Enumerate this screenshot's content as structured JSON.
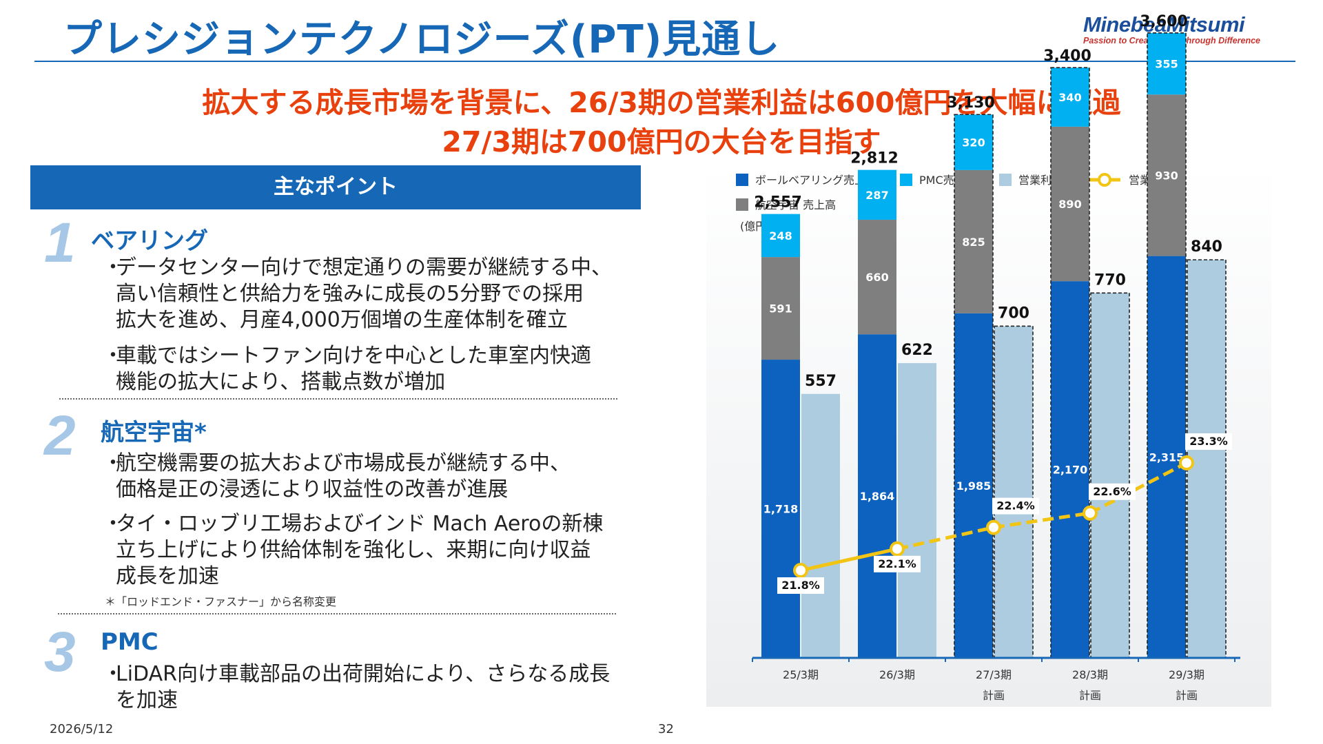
{
  "header": {
    "title": "プレシジョンテクノロジーズ(PT)見通し",
    "logo_name": "MinebeaMitsumi",
    "logo_tagline": "Passion to Create Value through Difference",
    "headline_line1": "拡大する成長市場を背景に、26/3期の営業利益は600億円を大幅に超過",
    "headline_line2": "27/3期は700億円の大台を目指す"
  },
  "points": {
    "header": "主なポイント",
    "sections": [
      {
        "number": "1",
        "title": "ベアリング",
        "bullets": [
          [
            "データセンター向けで想定通りの需要が継続する中、",
            "高い信頼性と供給力を強みに成長の5分野での採用",
            "拡大を進め、月産4,000万個増の生産体制を確立"
          ],
          [
            "車載ではシートファン向けを中心とした車室内快適",
            "機能の拡大により、搭載点数が増加"
          ]
        ]
      },
      {
        "number": "2",
        "title": "航空宇宙*",
        "bullets": [
          [
            "航空機需要の拡大および市場成長が継続する中、",
            "価格是正の浸透により収益性の改善が進展"
          ],
          [
            "タイ・ロッブリ工場およびインド Mach Aeroの新棟",
            "立ち上げにより供給体制を強化し、来期に向け収益",
            "成長を加速"
          ]
        ],
        "footnote": "＊「ロッドエンド・ファスナー」から名称変更"
      },
      {
        "number": "3",
        "title": "PMC",
        "bullets": [
          [
            "LiDAR向け車載部品の出荷開始により、さらなる成長",
            "を加速"
          ]
        ]
      }
    ],
    "bullet_mark": "・"
  },
  "chart_data": {
    "type": "bar",
    "unit_label": "(億円)",
    "categories": [
      "25/3期",
      "26/3期",
      "27/3期",
      "28/3期",
      "29/3期"
    ],
    "category_sublabels": [
      "",
      "",
      "計画",
      "計画",
      "計画"
    ],
    "stacked_series": [
      {
        "name": "ボールベアリング売上高",
        "color": "#0d62c0",
        "values": [
          1718,
          1864,
          1985,
          2170,
          2315
        ]
      },
      {
        "name": "航空宇宙 売上高",
        "color": "#7f7f7f",
        "values": [
          591,
          660,
          825,
          890,
          930
        ]
      },
      {
        "name": "PMC売上高",
        "color": "#00b0f0",
        "values": [
          248,
          287,
          320,
          340,
          355
        ]
      }
    ],
    "value_labels": {
      "ボールベアリング売上高": [
        "1,718",
        "1,864",
        "1,985",
        "2,170",
        "2,315"
      ],
      "航空宇宙 売上高": [
        "591",
        "660",
        "825",
        "890",
        "930"
      ],
      "PMC売上高": [
        "248",
        "287",
        "320",
        "340",
        "355"
      ]
    },
    "sales_totals": [
      2557,
      2812,
      3130,
      3400,
      3600
    ],
    "sales_total_labels": [
      "2,557",
      "2,812",
      "3,130",
      "3,400",
      "3,600"
    ],
    "operating_profit": {
      "name": "営業利益",
      "color": "#adcce0",
      "values": [
        557,
        622,
        700,
        770,
        840
      ],
      "labels": [
        "557",
        "622",
        "700",
        "770",
        "840"
      ]
    },
    "operating_margin": {
      "name": "営業利益率",
      "color": "#f2c515",
      "values": [
        21.8,
        22.1,
        22.4,
        22.6,
        23.3
      ],
      "labels": [
        "21.8%",
        "22.1%",
        "22.4%",
        "22.6%",
        "23.3%"
      ]
    },
    "forecast_categories": [
      "27/3期",
      "28/3期",
      "29/3期"
    ],
    "legend_position": "top",
    "ylim": [
      0,
      3800
    ],
    "grid": false
  },
  "footer": {
    "date": "2026/5/12",
    "page": "32"
  }
}
